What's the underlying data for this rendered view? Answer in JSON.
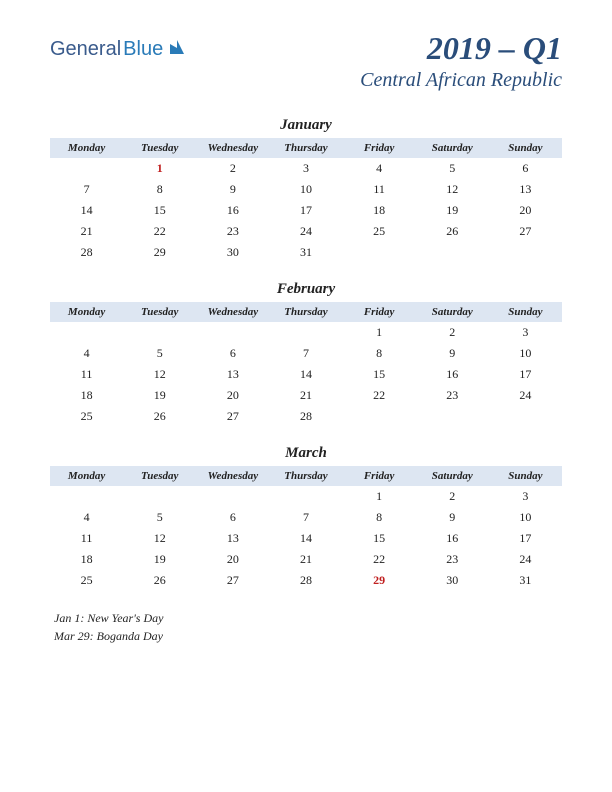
{
  "logo": {
    "text1": "General",
    "text2": "Blue"
  },
  "header": {
    "quarter": "2019 – Q1",
    "country": "Central African Republic"
  },
  "colors": {
    "header_bg": "#dde6f2",
    "title_color": "#2a4d7a",
    "holiday_color": "#c02020",
    "text_color": "#222222",
    "logo_color1": "#3a5b8c",
    "logo_color2": "#2a7bb8"
  },
  "day_headers": [
    "Monday",
    "Tuesday",
    "Wednesday",
    "Thursday",
    "Friday",
    "Saturday",
    "Sunday"
  ],
  "months": [
    {
      "name": "January",
      "weeks": [
        [
          "",
          "1",
          "2",
          "3",
          "4",
          "5",
          "6"
        ],
        [
          "7",
          "8",
          "9",
          "10",
          "11",
          "12",
          "13"
        ],
        [
          "14",
          "15",
          "16",
          "17",
          "18",
          "19",
          "20"
        ],
        [
          "21",
          "22",
          "23",
          "24",
          "25",
          "26",
          "27"
        ],
        [
          "28",
          "29",
          "30",
          "31",
          "",
          "",
          ""
        ]
      ],
      "holidays": [
        [
          0,
          1
        ]
      ]
    },
    {
      "name": "February",
      "weeks": [
        [
          "",
          "",
          "",
          "",
          "1",
          "2",
          "3"
        ],
        [
          "4",
          "5",
          "6",
          "7",
          "8",
          "9",
          "10"
        ],
        [
          "11",
          "12",
          "13",
          "14",
          "15",
          "16",
          "17"
        ],
        [
          "18",
          "19",
          "20",
          "21",
          "22",
          "23",
          "24"
        ],
        [
          "25",
          "26",
          "27",
          "28",
          "",
          "",
          ""
        ]
      ],
      "holidays": []
    },
    {
      "name": "March",
      "weeks": [
        [
          "",
          "",
          "",
          "",
          "1",
          "2",
          "3"
        ],
        [
          "4",
          "5",
          "6",
          "7",
          "8",
          "9",
          "10"
        ],
        [
          "11",
          "12",
          "13",
          "14",
          "15",
          "16",
          "17"
        ],
        [
          "18",
          "19",
          "20",
          "21",
          "22",
          "23",
          "24"
        ],
        [
          "25",
          "26",
          "27",
          "28",
          "29",
          "30",
          "31"
        ]
      ],
      "holidays": [
        [
          4,
          4
        ]
      ]
    }
  ],
  "holiday_notes": [
    "Jan 1: New Year's Day",
    "Mar 29: Boganda Day"
  ]
}
